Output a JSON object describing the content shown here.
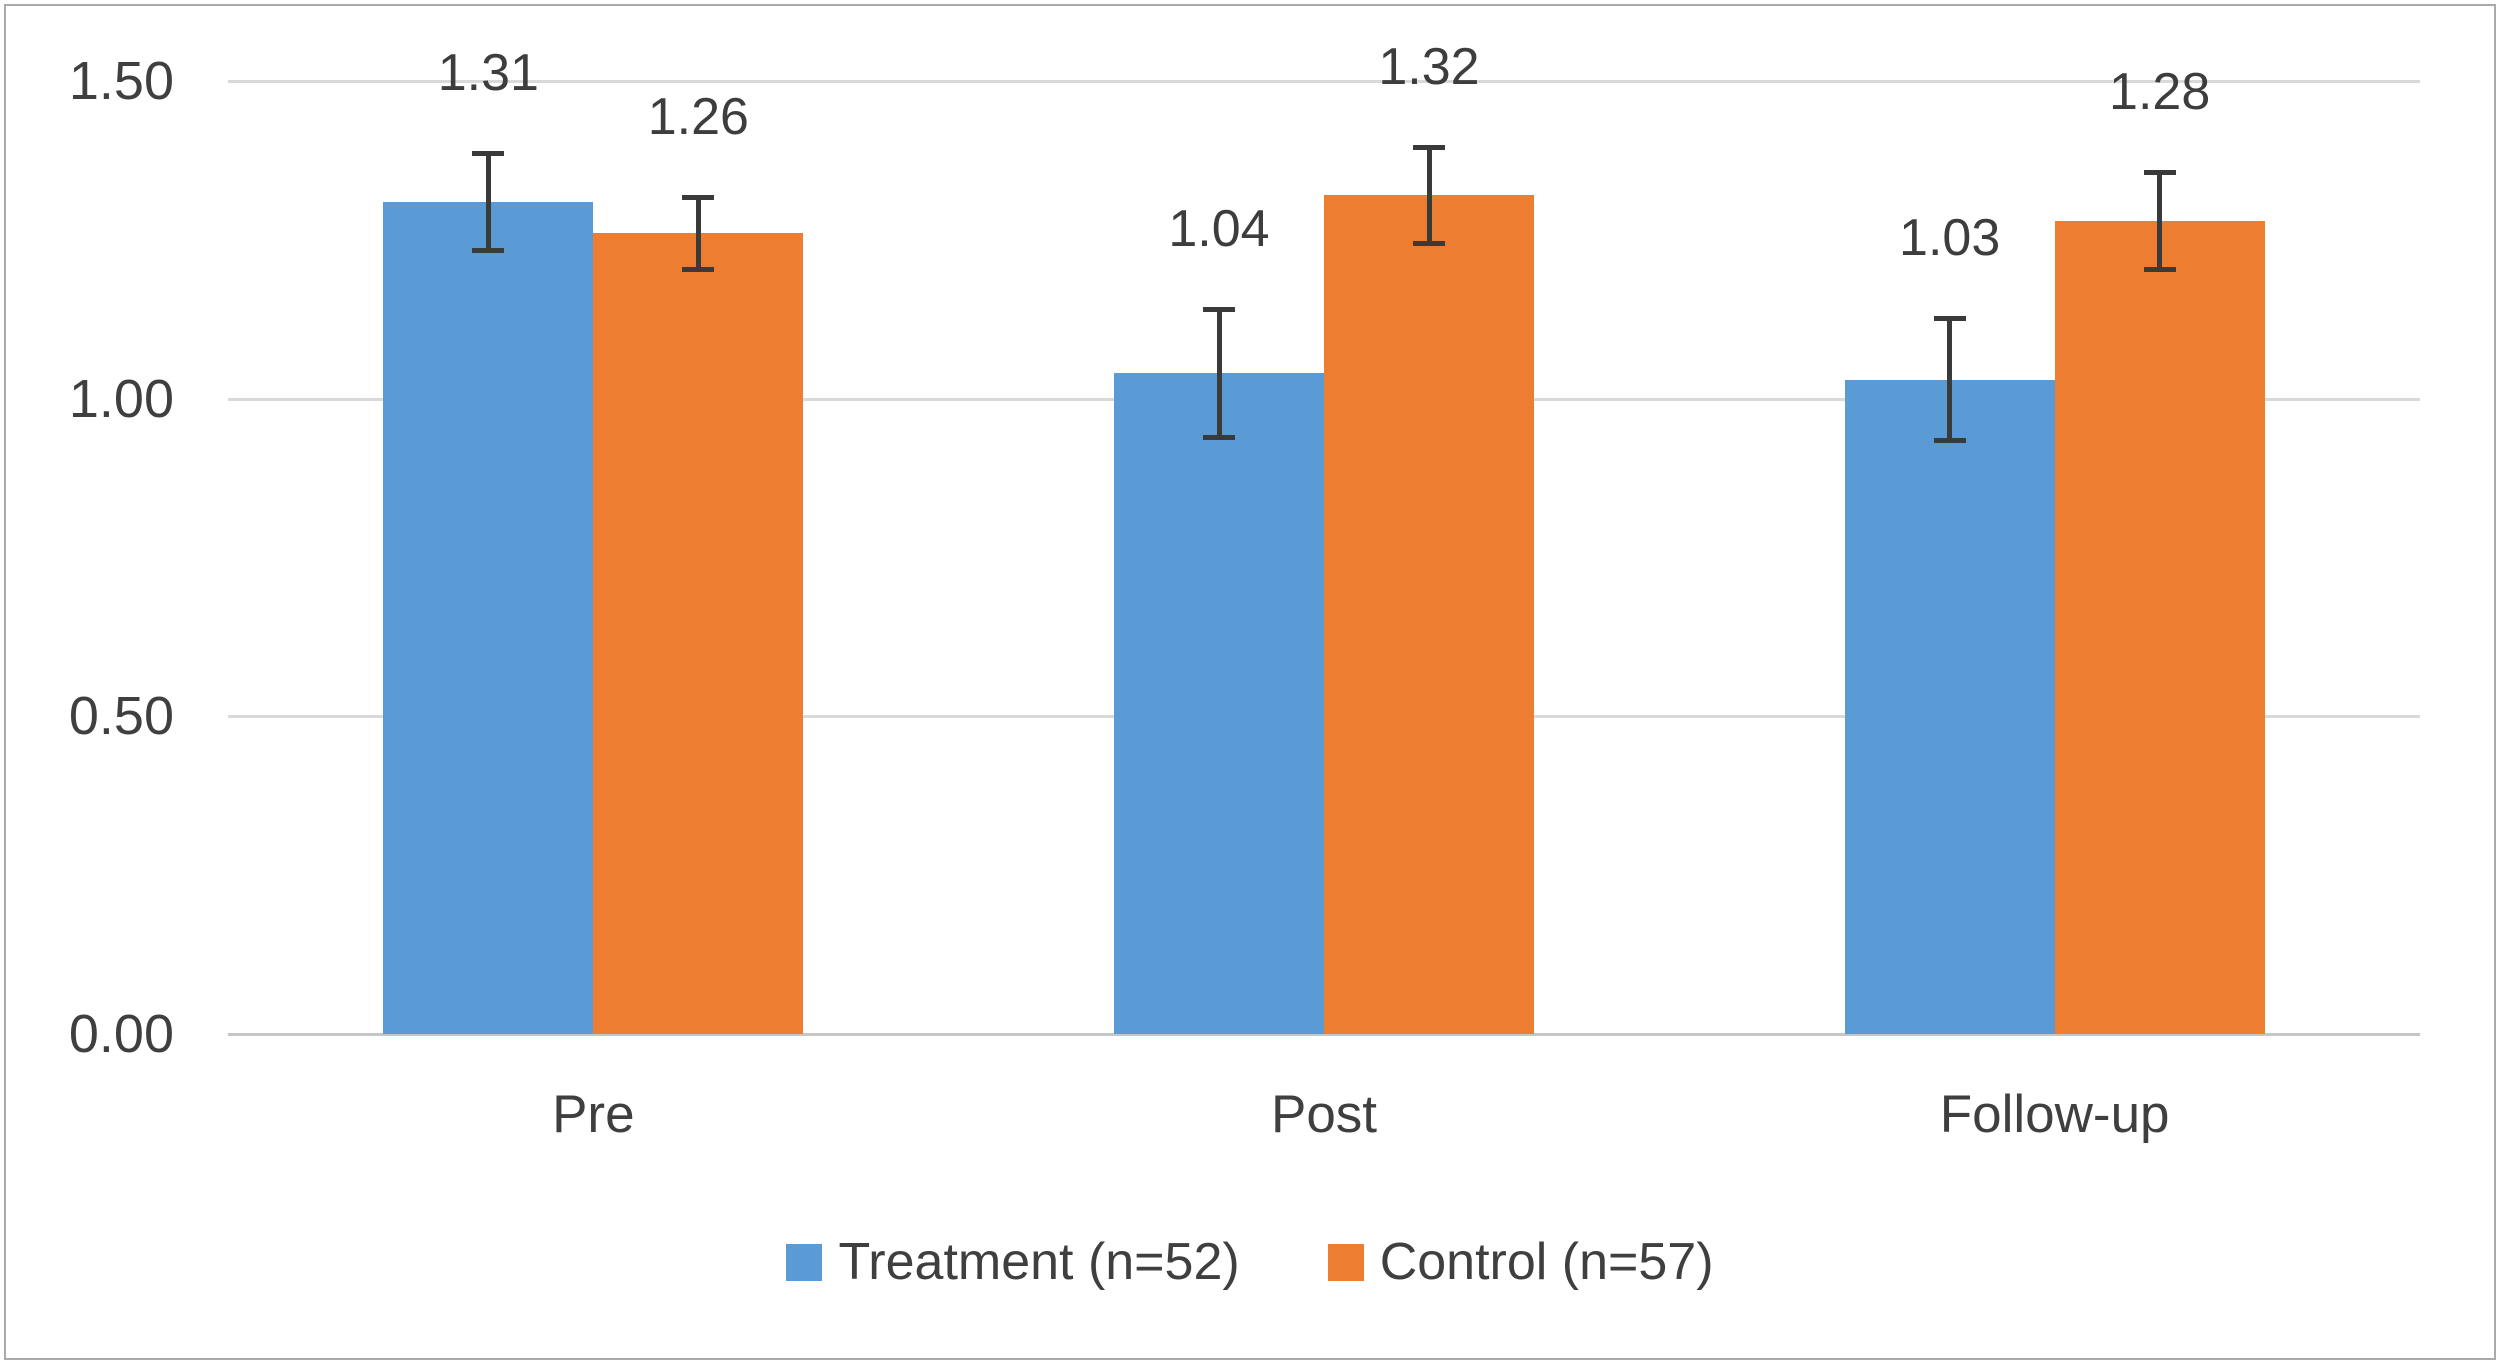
{
  "chart_data": {
    "type": "bar",
    "title": "",
    "xlabel": "",
    "ylabel": "",
    "categories": [
      "Pre",
      "Post",
      "Follow-up"
    ],
    "series": [
      {
        "name": "Treatment (n=52)",
        "color": "#5B9BD5",
        "values": [
          1.31,
          1.04,
          1.03
        ],
        "data_labels": [
          "1.31",
          "1.04",
          "1.03"
        ],
        "error_bars": [
          0.08,
          0.105,
          0.1
        ]
      },
      {
        "name": "Control (n=57)",
        "color": "#ED7D31",
        "values": [
          1.26,
          1.32,
          1.28
        ],
        "data_labels": [
          "1.26",
          "1.32",
          "1.28"
        ],
        "error_bars": [
          0.06,
          0.08,
          0.08
        ]
      }
    ],
    "ylim": [
      0,
      1.5
    ],
    "yticks": {
      "values": [
        1.5,
        1.0,
        0.5,
        0.0
      ],
      "labels": [
        "1.50",
        "1.00",
        "0.50",
        "0.00"
      ]
    },
    "grid": true,
    "legend_position": "bottom",
    "colors": {
      "gridline": "#d9d9d9",
      "axis_line": "#c6c6c6",
      "error_bar": "#3a3a3a",
      "text": "#3f3f3f",
      "frame_border": "#aaaaaa",
      "background": "#ffffff"
    }
  }
}
